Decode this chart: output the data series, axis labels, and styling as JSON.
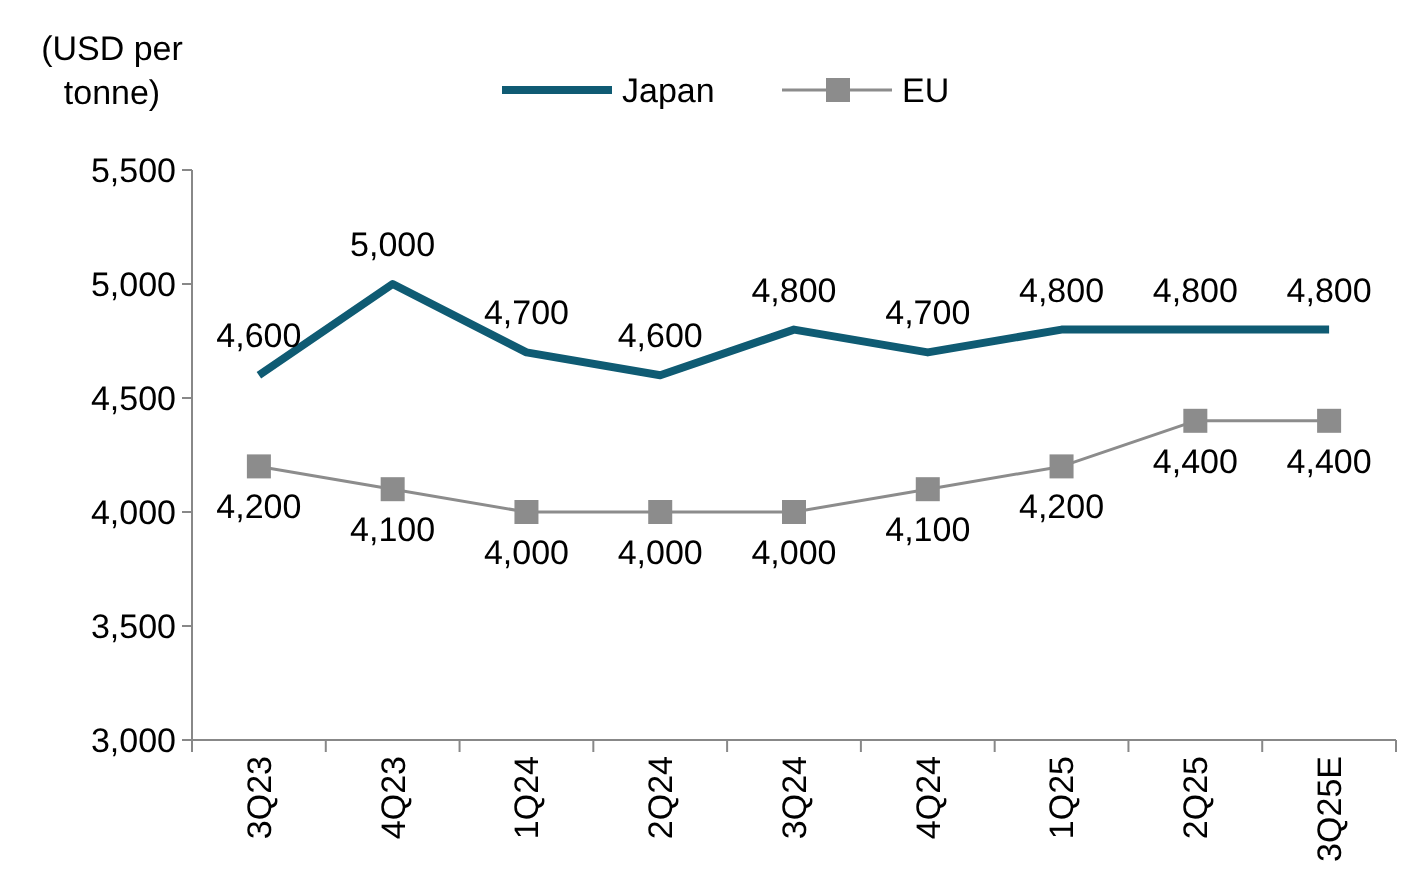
{
  "chart_data": {
    "type": "line",
    "ylabel": "(USD per tonne)",
    "categories": [
      "3Q23",
      "4Q23",
      "1Q24",
      "2Q24",
      "3Q24",
      "4Q24",
      "1Q25",
      "2Q25",
      "3Q25E"
    ],
    "series": [
      {
        "name": "Japan",
        "color": "#0f5b73",
        "marker": "none",
        "values": [
          4600,
          5000,
          4700,
          4600,
          4800,
          4700,
          4800,
          4800,
          4800
        ],
        "value_labels": [
          "4,600",
          "5,000",
          "4,700",
          "4,600",
          "4,800",
          "4,700",
          "4,800",
          "4,800",
          "4,800"
        ]
      },
      {
        "name": "EU",
        "color": "#8c8c8c",
        "marker": "square",
        "values": [
          4200,
          4100,
          4000,
          4000,
          4000,
          4100,
          4200,
          4400,
          4400
        ],
        "value_labels": [
          "4,200",
          "4,100",
          "4,000",
          "4,000",
          "4,000",
          "4,100",
          "4,200",
          "4,400",
          "4,400"
        ]
      }
    ],
    "ylim": [
      3000,
      5500
    ],
    "yticks": [
      {
        "value": 3000,
        "label": "3,000"
      },
      {
        "value": 3500,
        "label": "3,500"
      },
      {
        "value": 4000,
        "label": "4,000"
      },
      {
        "value": 4500,
        "label": "4,500"
      },
      {
        "value": 5000,
        "label": "5,000"
      },
      {
        "value": 5500,
        "label": "5,500"
      }
    ],
    "legend": "top",
    "grid": false
  }
}
